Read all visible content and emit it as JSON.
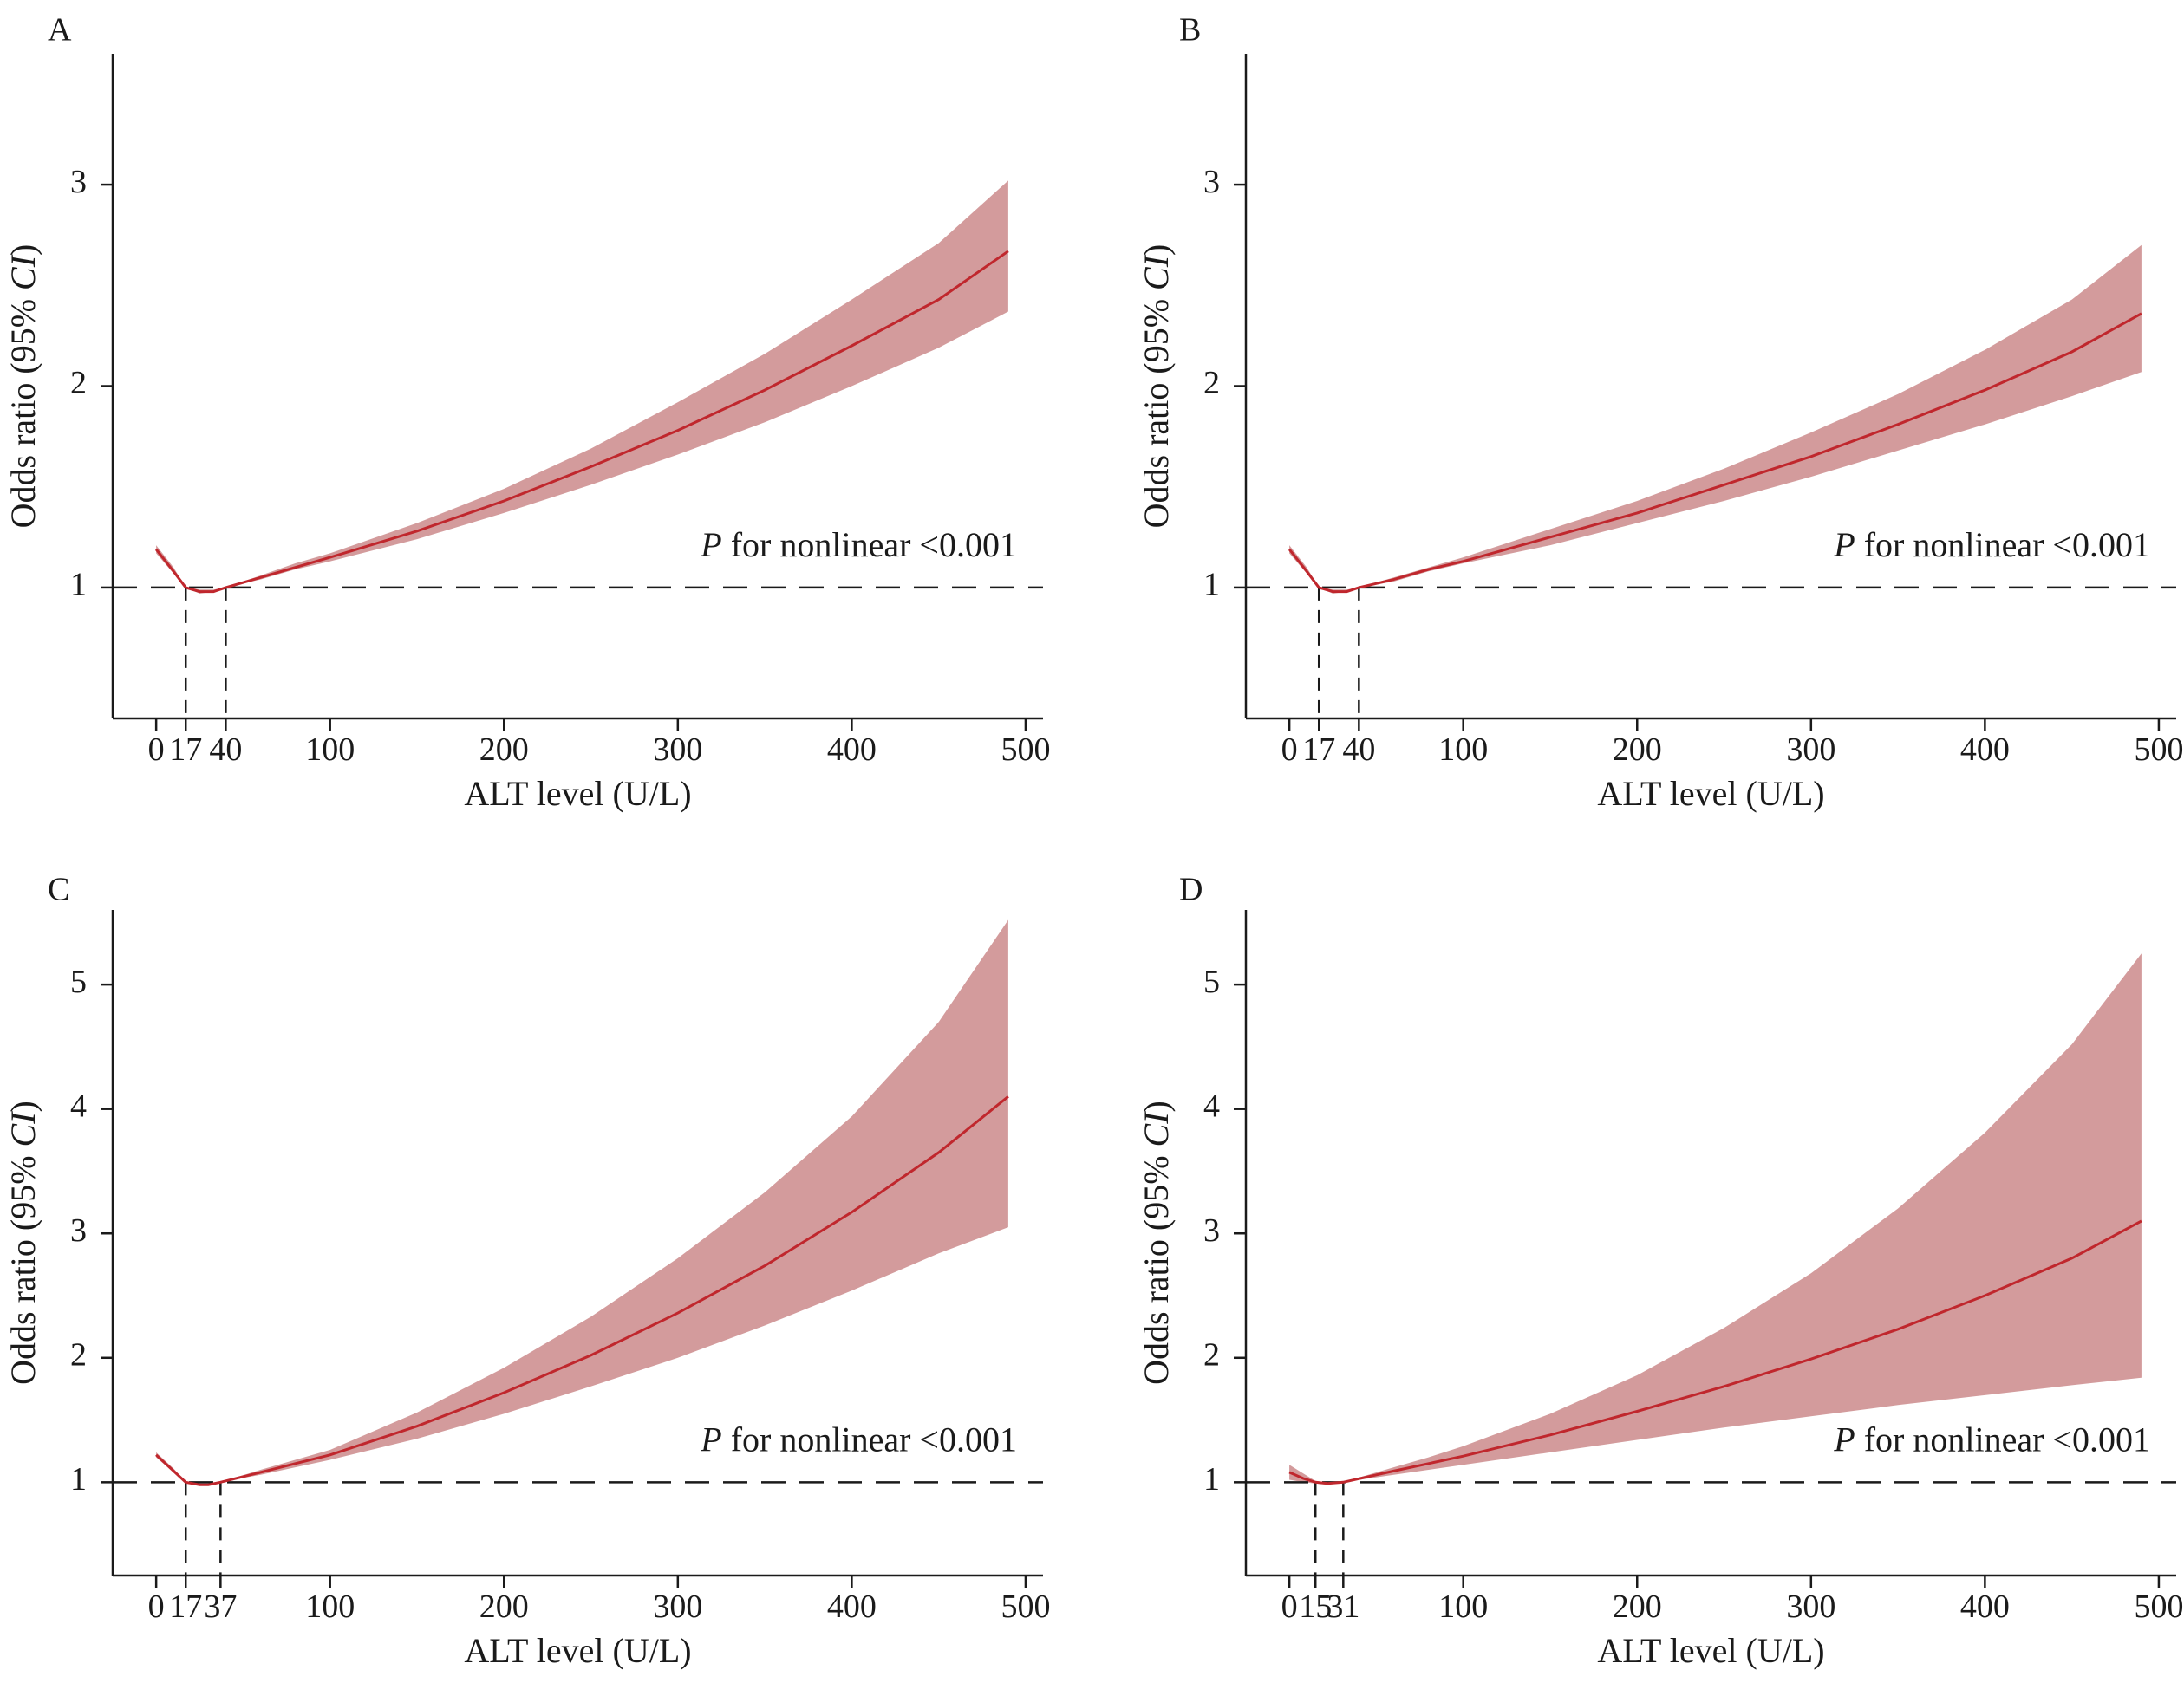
{
  "colors": {
    "line": "#c0272d",
    "band": "#d39b9c",
    "axis": "#1a1a1a"
  },
  "chart_data": [
    {
      "panel": "A",
      "type": "line",
      "xlabel": "ALT level (U/L)",
      "ylabel_prefix": "Odds ratio (95% ",
      "ylabel_italic": "CI",
      "ylabel_suffix": ")",
      "annotation_italic": "P",
      "annotation_text": " for nonlinear <0.001",
      "xlim": [
        -25,
        510
      ],
      "ylim": [
        0.35,
        3.65
      ],
      "xticks": [
        0,
        17,
        40,
        100,
        200,
        300,
        400,
        500
      ],
      "xtick_labels": [
        "0",
        "17",
        "40",
        "100",
        "200",
        "300",
        "400",
        "500"
      ],
      "yticks": [
        1,
        2,
        3
      ],
      "ytick_labels": [
        "1",
        "2",
        "3"
      ],
      "reference_y": 1,
      "reference_x": [
        17,
        40
      ],
      "series": {
        "x": [
          0,
          10,
          17,
          25,
          33,
          40,
          60,
          80,
          100,
          150,
          200,
          250,
          300,
          350,
          400,
          450,
          490
        ],
        "or": [
          1.19,
          1.08,
          1.0,
          0.98,
          0.98,
          1.0,
          1.05,
          1.1,
          1.15,
          1.28,
          1.43,
          1.6,
          1.78,
          1.98,
          2.2,
          2.43,
          2.67
        ],
        "lower": [
          1.17,
          1.07,
          1.0,
          0.97,
          0.98,
          1.0,
          1.04,
          1.09,
          1.13,
          1.24,
          1.37,
          1.51,
          1.66,
          1.82,
          2.0,
          2.19,
          2.37
        ],
        "upper": [
          1.21,
          1.1,
          1.0,
          0.99,
          0.99,
          1.0,
          1.06,
          1.12,
          1.17,
          1.32,
          1.49,
          1.69,
          1.92,
          2.16,
          2.43,
          2.71,
          3.02
        ]
      }
    },
    {
      "panel": "B",
      "type": "line",
      "xlabel": "ALT level (U/L)",
      "ylabel_prefix": "Odds ratio (95% ",
      "ylabel_italic": "CI",
      "ylabel_suffix": ")",
      "annotation_italic": "P",
      "annotation_text": " for nonlinear <0.001",
      "xlim": [
        -25,
        510
      ],
      "ylim": [
        0.35,
        3.65
      ],
      "xticks": [
        0,
        17,
        40,
        100,
        200,
        300,
        400,
        500
      ],
      "xtick_labels": [
        "0",
        "17",
        "40",
        "100",
        "200",
        "300",
        "400",
        "500"
      ],
      "yticks": [
        1,
        2,
        3
      ],
      "ytick_labels": [
        "1",
        "2",
        "3"
      ],
      "reference_y": 1,
      "reference_x": [
        17,
        40
      ],
      "series": {
        "x": [
          0,
          10,
          17,
          25,
          33,
          40,
          60,
          80,
          100,
          150,
          200,
          250,
          300,
          350,
          400,
          450,
          490
        ],
        "or": [
          1.19,
          1.08,
          1.0,
          0.98,
          0.98,
          1.0,
          1.04,
          1.09,
          1.13,
          1.25,
          1.37,
          1.51,
          1.65,
          1.81,
          1.98,
          2.17,
          2.36
        ],
        "lower": [
          1.17,
          1.07,
          1.0,
          0.97,
          0.98,
          1.0,
          1.03,
          1.08,
          1.12,
          1.21,
          1.32,
          1.43,
          1.55,
          1.68,
          1.81,
          1.95,
          2.07
        ],
        "upper": [
          1.21,
          1.1,
          1.0,
          0.99,
          0.99,
          1.0,
          1.05,
          1.1,
          1.15,
          1.29,
          1.43,
          1.59,
          1.77,
          1.96,
          2.18,
          2.43,
          2.7
        ]
      }
    },
    {
      "panel": "C",
      "type": "line",
      "xlabel": "ALT level (U/L)",
      "ylabel_prefix": "Odds ratio (95% ",
      "ylabel_italic": "CI",
      "ylabel_suffix": ")",
      "annotation_italic": "P",
      "annotation_text": " for nonlinear <0.001",
      "xlim": [
        -25,
        510
      ],
      "ylim": [
        0.25,
        5.6
      ],
      "xticks": [
        0,
        17,
        37,
        100,
        200,
        300,
        400,
        500
      ],
      "xtick_labels": [
        "0",
        "17",
        "37",
        "100",
        "200",
        "300",
        "400",
        "500"
      ],
      "yticks": [
        1,
        2,
        3,
        4,
        5
      ],
      "ytick_labels": [
        "1",
        "2",
        "3",
        "4",
        "5"
      ],
      "reference_y": 1,
      "reference_x": [
        17,
        37
      ],
      "series": {
        "x": [
          0,
          10,
          17,
          25,
          30,
          37,
          60,
          80,
          100,
          150,
          200,
          250,
          300,
          350,
          400,
          450,
          490
        ],
        "or": [
          1.22,
          1.09,
          1.0,
          0.98,
          0.98,
          1.0,
          1.08,
          1.15,
          1.22,
          1.45,
          1.72,
          2.02,
          2.36,
          2.74,
          3.17,
          3.65,
          4.1
        ],
        "lower": [
          1.2,
          1.08,
          1.0,
          0.97,
          0.98,
          1.0,
          1.06,
          1.12,
          1.18,
          1.35,
          1.55,
          1.77,
          2.0,
          2.26,
          2.54,
          2.84,
          3.05
        ],
        "upper": [
          1.24,
          1.11,
          1.0,
          0.99,
          0.99,
          1.0,
          1.1,
          1.18,
          1.26,
          1.56,
          1.92,
          2.33,
          2.8,
          3.33,
          3.94,
          4.7,
          5.52
        ]
      }
    },
    {
      "panel": "D",
      "type": "line",
      "xlabel": "ALT level (U/L)",
      "ylabel_prefix": "Odds ratio (95% ",
      "ylabel_italic": "CI",
      "ylabel_suffix": ")",
      "annotation_italic": "P",
      "annotation_text": " for nonlinear <0.001",
      "xlim": [
        -25,
        510
      ],
      "ylim": [
        0.25,
        5.6
      ],
      "xticks": [
        0,
        15,
        31,
        100,
        200,
        300,
        400,
        500
      ],
      "xtick_labels": [
        "0",
        "15",
        "31",
        "100",
        "200",
        "300",
        "400",
        "500"
      ],
      "yticks": [
        1,
        2,
        3,
        4,
        5
      ],
      "ytick_labels": [
        "1",
        "2",
        "3",
        "4",
        "5"
      ],
      "reference_y": 1,
      "reference_x": [
        15,
        31
      ],
      "series": {
        "x": [
          0,
          8,
          15,
          22,
          31,
          60,
          80,
          100,
          150,
          200,
          250,
          300,
          350,
          400,
          450,
          490
        ],
        "or": [
          1.08,
          1.03,
          1.0,
          0.99,
          1.0,
          1.09,
          1.15,
          1.21,
          1.38,
          1.57,
          1.77,
          1.99,
          2.23,
          2.5,
          2.8,
          3.1
        ],
        "lower": [
          1.02,
          1.0,
          0.99,
          0.98,
          1.0,
          1.06,
          1.1,
          1.14,
          1.24,
          1.34,
          1.44,
          1.53,
          1.62,
          1.7,
          1.78,
          1.84
        ],
        "upper": [
          1.14,
          1.07,
          1.01,
          1.0,
          1.0,
          1.12,
          1.2,
          1.29,
          1.55,
          1.86,
          2.24,
          2.68,
          3.2,
          3.81,
          4.52,
          5.25
        ]
      }
    }
  ]
}
